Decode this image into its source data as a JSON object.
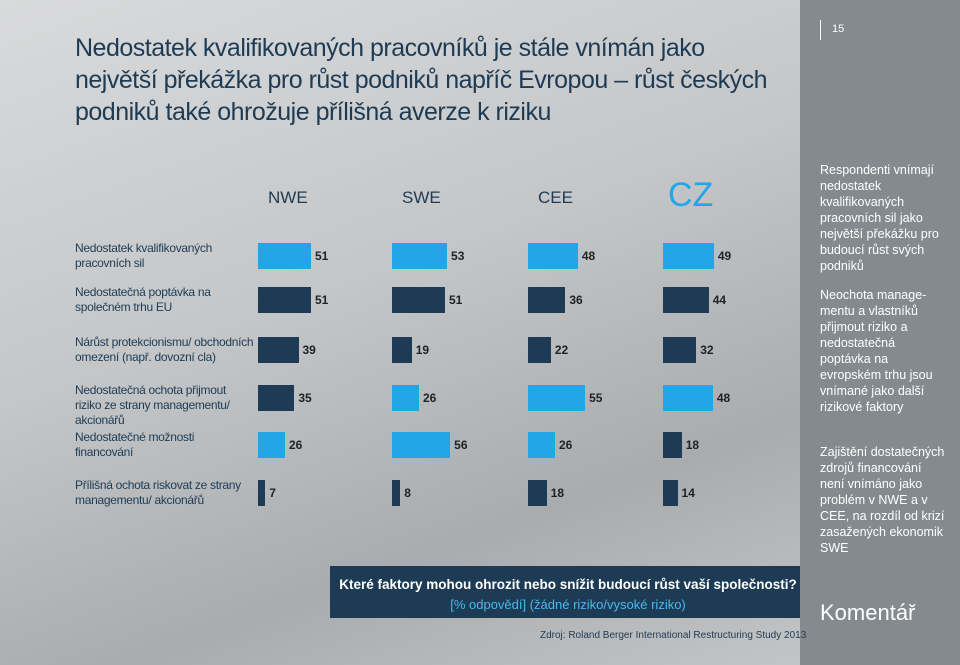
{
  "page_number": "15",
  "title": "Nedostatek kvalifikovaných pracovníků je stále vnímán jako největší překážka pro růst podniků napříč Evropou – růst českých podniků také ohrožuje přílišná averze k riziku",
  "comments": [
    "Respondenti vnímají nedostatek kvalifikovaných pracovních sil jako největší překážku pro budoucí růst svých podniků",
    "Neochota manage-mentu a vlastníků přijmout riziko a nedostatečná poptávka na evropském trhu jsou vnímané jako další rizikové faktory",
    "Zajištění dostatečných zdrojů financování není vnímáno jako problém v NWE a v CEE, na rozdíl od krizí zasažených ekonomik SWE"
  ],
  "comment_heading": "Komentář",
  "question": "Které faktory mohou ohrozit nebo snížit budoucí růst vaší společnosti?",
  "question_note": "[% odpovědí] (žádné riziko/vysoké riziko)",
  "source": "Zdroj: Roland Berger International Restructuring Study 2013",
  "chart_data": {
    "type": "bar",
    "orientation": "horizontal",
    "categories": [
      "Nedostatek kvalifikovaných pracovních sil",
      "Nedostatečná poptávka na společném trhu EU",
      "Nárůst protekcionismu/ obchodních omezení (např. dovozní cla)",
      "Nedostatečná ochota přijmout riziko ze strany managementu/ akcionářů",
      "Nedostatečné možnosti financování",
      "Přílišná ochota riskovat ze strany managementu/ akcionářů"
    ],
    "xlim": [
      0,
      130
    ],
    "series": [
      {
        "name": "NWE",
        "values": [
          51,
          51,
          39,
          35,
          26,
          7
        ],
        "colors": [
          "#23a6e8",
          "#1d3b54",
          "#1d3b54",
          "#1d3b54",
          "#23a6e8",
          "#1d3b54"
        ]
      },
      {
        "name": "SWE",
        "values": [
          53,
          51,
          19,
          26,
          56,
          8
        ],
        "colors": [
          "#23a6e8",
          "#1d3b54",
          "#1d3b54",
          "#23a6e8",
          "#23a6e8",
          "#1d3b54"
        ]
      },
      {
        "name": "CEE",
        "values": [
          48,
          36,
          22,
          55,
          26,
          18
        ],
        "colors": [
          "#23a6e8",
          "#1d3b54",
          "#1d3b54",
          "#23a6e8",
          "#23a6e8",
          "#1d3b54"
        ]
      },
      {
        "name": "CZ",
        "values": [
          49,
          44,
          32,
          48,
          18,
          14
        ],
        "colors": [
          "#23a6e8",
          "#1d3b54",
          "#1d3b54",
          "#23a6e8",
          "#1d3b54",
          "#1d3b54"
        ]
      }
    ]
  }
}
